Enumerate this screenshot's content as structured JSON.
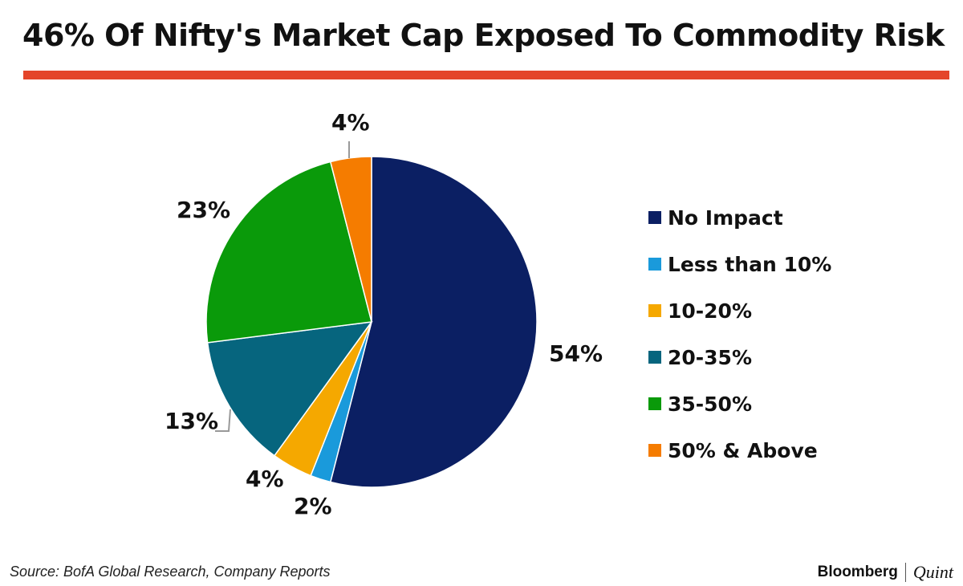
{
  "header": {
    "title": "46% Of Nifty's Market Cap Exposed To Commodity Risk",
    "rule_color": "#E4452A"
  },
  "chart_data": {
    "type": "pie",
    "title": "46% Of Nifty's Market Cap Exposed To Commodity Risk",
    "start_angle_deg": 0,
    "direction": "clockwise",
    "slices": [
      {
        "label": "No Impact",
        "value": 54,
        "display": "54%",
        "color": "#0B1F63"
      },
      {
        "label": "Less than 10%",
        "value": 2,
        "display": "2%",
        "color": "#1A9ADB"
      },
      {
        "label": "10-20%",
        "value": 4,
        "display": "4%",
        "color": "#F5A800"
      },
      {
        "label": "20-35%",
        "value": 13,
        "display": "13%",
        "color": "#06657E"
      },
      {
        "label": "35-50%",
        "value": 23,
        "display": "23%",
        "color": "#0A9A0A"
      },
      {
        "label": "50% & Above",
        "value": 4,
        "display": "4%",
        "color": "#F57C00"
      }
    ],
    "legend_position": "right"
  },
  "footer": {
    "source": "Source: BofA Global Research, Company Reports",
    "brand_left": "Bloomberg",
    "brand_right": "Quint"
  }
}
